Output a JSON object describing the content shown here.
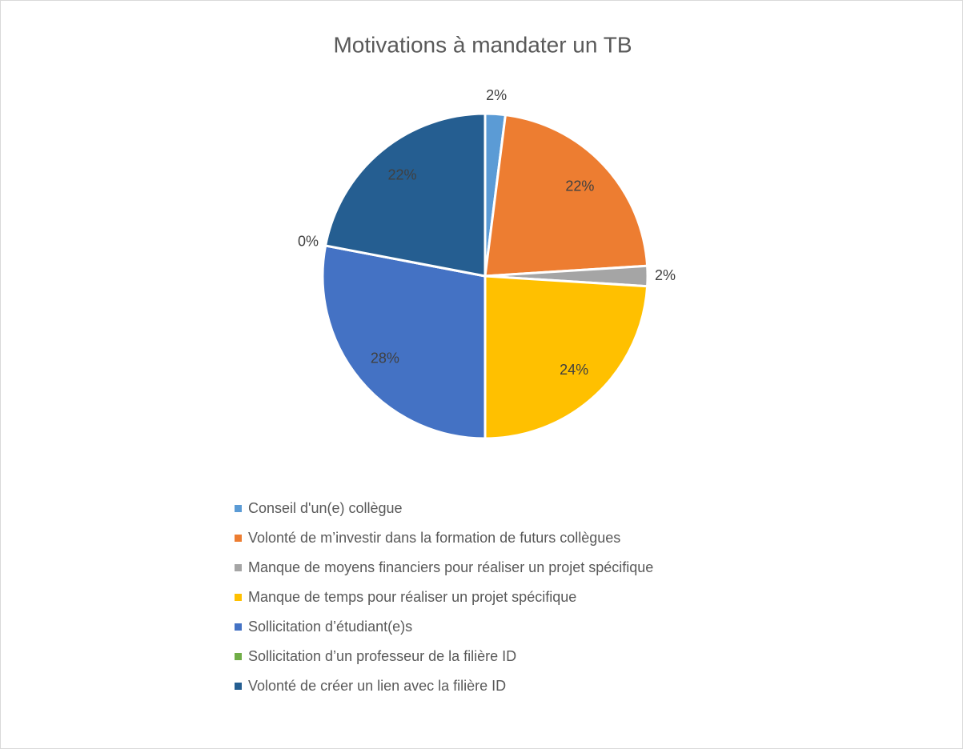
{
  "chart_data": {
    "type": "pie",
    "title": "Motivations à mandater un TB",
    "categories": [
      "Conseil d'un(e) collègue",
      "Volonté de m’investir dans la formation de futurs collègues",
      "Manque de moyens financiers pour réaliser un projet spécifique",
      "Manque de temps pour réaliser un projet spécifique",
      "Sollicitation d’étudiant(e)s",
      "Sollicitation d’un professeur de la filière ID",
      "Volonté de créer un lien avec la filière ID"
    ],
    "values": [
      2,
      22,
      2,
      24,
      28,
      0,
      22
    ],
    "value_labels": [
      "2%",
      "22%",
      "2%",
      "24%",
      "28%",
      "0%",
      "22%"
    ],
    "colors": [
      "#5B9BD5",
      "#ED7D31",
      "#A5A5A5",
      "#FFC000",
      "#4472C4",
      "#70AD47",
      "#255E91"
    ],
    "legend": "bottom"
  }
}
